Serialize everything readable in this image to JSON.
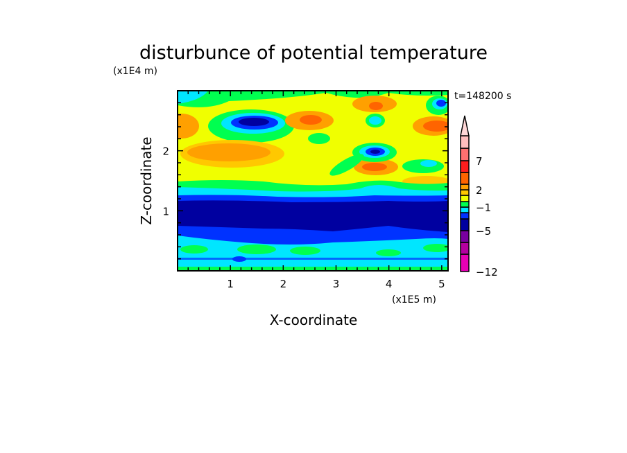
{
  "chart_data": {
    "type": "contour",
    "title": "disturbunce of potential temperature",
    "xlabel": "X-coordinate",
    "ylabel": "Z-coordinate",
    "x_unit": "(x1E5 m)",
    "y_unit": "(x1E4 m)",
    "time_label": "t=148200 s",
    "xlim": [
      0,
      5.12
    ],
    "ylim": [
      0,
      3.0
    ],
    "x_ticks": [
      "1",
      "2",
      "3",
      "4",
      "5"
    ],
    "y_ticks": [
      "1",
      "2"
    ],
    "colorbar": {
      "labels": [
        "7",
        "2",
        "−1",
        "−5",
        "−12"
      ],
      "colors_bottom_to_top": [
        "#e600b4",
        "#b400a0",
        "#7800a0",
        "#0000a0",
        "#0032ff",
        "#00e6ff",
        "#00ff50",
        "#f0ff00",
        "#ffc800",
        "#ffa000",
        "#ff6400",
        "#ff1e1e",
        "#ff7070",
        "#ffbebe"
      ],
      "extend_top_color": "#ffd8d8",
      "extend": "max"
    }
  }
}
